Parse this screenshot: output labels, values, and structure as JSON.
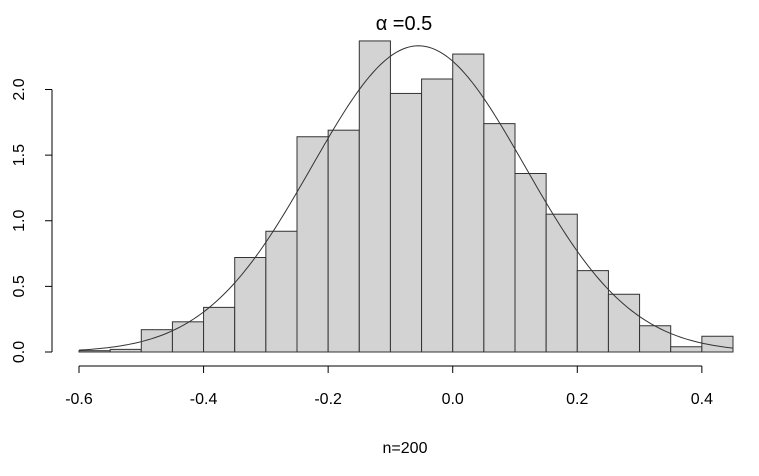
{
  "chart_data": {
    "type": "bar",
    "subtype": "histogram",
    "title_symbol": "α",
    "title_text": " =0.5",
    "xlabel": "n=200",
    "ylabel": "",
    "xlim": [
      -0.6,
      0.45
    ],
    "ylim": [
      0,
      2.4
    ],
    "bin_width": 0.05,
    "x_ticks": [
      -0.6,
      -0.4,
      -0.2,
      0.0,
      0.2,
      0.4
    ],
    "x_tick_labels": [
      "-0.6",
      "-0.4",
      "-0.2",
      "0.0",
      "0.2",
      "0.4"
    ],
    "y_ticks": [
      0.0,
      0.5,
      1.0,
      1.5,
      2.0
    ],
    "y_tick_labels": [
      "0.0",
      "0.5",
      "1.0",
      "1.5",
      "2.0"
    ],
    "bins": [
      {
        "x0": -0.6,
        "x1": -0.55,
        "density": 0.01
      },
      {
        "x0": -0.55,
        "x1": -0.5,
        "density": 0.02
      },
      {
        "x0": -0.5,
        "x1": -0.45,
        "density": 0.17
      },
      {
        "x0": -0.45,
        "x1": -0.4,
        "density": 0.23
      },
      {
        "x0": -0.4,
        "x1": -0.35,
        "density": 0.34
      },
      {
        "x0": -0.35,
        "x1": -0.3,
        "density": 0.72
      },
      {
        "x0": -0.3,
        "x1": -0.25,
        "density": 0.92
      },
      {
        "x0": -0.25,
        "x1": -0.2,
        "density": 1.64
      },
      {
        "x0": -0.2,
        "x1": -0.15,
        "density": 1.69
      },
      {
        "x0": -0.15,
        "x1": -0.1,
        "density": 2.37
      },
      {
        "x0": -0.1,
        "x1": -0.05,
        "density": 1.97
      },
      {
        "x0": -0.05,
        "x1": 0.0,
        "density": 2.08
      },
      {
        "x0": 0.0,
        "x1": 0.05,
        "density": 2.27
      },
      {
        "x0": 0.05,
        "x1": 0.1,
        "density": 1.74
      },
      {
        "x0": 0.1,
        "x1": 0.15,
        "density": 1.36
      },
      {
        "x0": 0.15,
        "x1": 0.2,
        "density": 1.05
      },
      {
        "x0": 0.2,
        "x1": 0.25,
        "density": 0.62
      },
      {
        "x0": 0.25,
        "x1": 0.3,
        "density": 0.44
      },
      {
        "x0": 0.3,
        "x1": 0.35,
        "density": 0.2
      },
      {
        "x0": 0.35,
        "x1": 0.4,
        "density": 0.04
      },
      {
        "x0": 0.4,
        "x1": 0.45,
        "density": 0.12
      }
    ],
    "density_curve": {
      "type": "normal",
      "mean": -0.055,
      "sd": 0.171,
      "x_range": [
        -0.6,
        0.45
      ]
    },
    "grid": false,
    "bar_fill": "#d3d3d3",
    "bar_stroke": "#333333"
  }
}
